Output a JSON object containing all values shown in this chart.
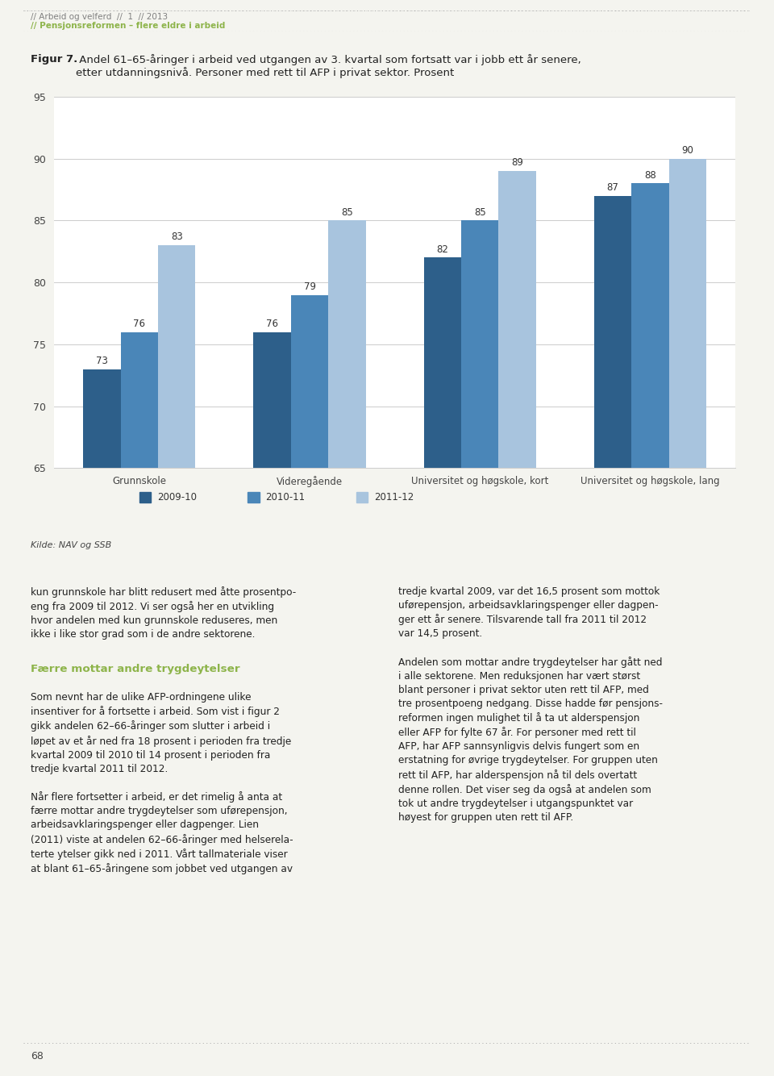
{
  "title_bold": "Figur 7.",
  "title_rest": " Andel 61–65-åringer i arbeid ved utgangen av 3. kvartal som fortsatt var i jobb ett år senere,\netter utdanningsnivå. Personer med rett til AFP i privat sektor. Prosent",
  "categories": [
    "Grunnskole",
    "Videregående",
    "Universitet og høgskole, kort",
    "Universitet og høgskole, lang"
  ],
  "series": {
    "2009-10": [
      73,
      76,
      82,
      87
    ],
    "2010-11": [
      76,
      79,
      85,
      88
    ],
    "2011-12": [
      83,
      85,
      89,
      90
    ]
  },
  "series_order": [
    "2009-10",
    "2010-11",
    "2011-12"
  ],
  "colors": {
    "2009-10": "#2d5f8a",
    "2010-11": "#4a86b8",
    "2011-12": "#a8c4de"
  },
  "ylim": [
    65,
    95
  ],
  "yticks": [
    65,
    70,
    75,
    80,
    85,
    90,
    95
  ],
  "source": "Kilde: NAV og SSB",
  "bar_width": 0.22,
  "header_line1": "// Arbeid og velferd  //  1  // 2013",
  "header_line2": "// Pensjonsreformen – flere eldre i arbeid",
  "footer_text": "68",
  "pre_heading_text": "kun grunnskole har blitt redusert med åtte prosentpo-\neng fra 2009 til 2012. Vi ser også her en utvikling\nhvor andelen med kun grunnskole reduseres, men\nikke i like stor grad som i de andre sektorene.",
  "subheading": "Færre mottar andre trygdeytelser",
  "post_heading_text": "Som nevnt har de ulike AFP-ordningene ulike\ninsentiver for å fortsette i arbeid. Som vist i figur 2\ngikk andelen 62–66-åringer som slutter i arbeid i\nløpet av et år ned fra 18 prosent i perioden fra tredje\nkvartal 2009 til 2010 til 14 prosent i perioden fra\ntredje kvartal 2011 til 2012.\n\nNår flere fortsetter i arbeid, er det rimelig å anta at\nfærre mottar andre trygdeytelser som uførepensjon,\narbeidsavklaringspenger eller dagpenger. Lien\n(2011) viste at andelen 62–66-åringer med helserela-\nterte ytelser gikk ned i 2011. Vårt tallmateriale viser\nat blant 61–65-åringene som jobbet ved utgangen av",
  "body_text_right": "tredje kvartal 2009, var det 16,5 prosent som mottok\nuførepensjon, arbeidsavklaringspenger eller dagpen-\nger ett år senere. Tilsvarende tall fra 2011 til 2012\nvar 14,5 prosent.\n\nAndelen som mottar andre trygdeytelser har gått ned\ni alle sektorene. Men reduksjonen har vært størst\nblant personer i privat sektor uten rett til AFP, med\ntre prosentpoeng nedgang. Disse hadde før pensjons-\nreformen ingen mulighet til å ta ut alderspensjon\neller AFP for fylte 67 år. For personer med rett til\nAFP, har AFP sannsynligvis delvis fungert som en\nerstatning for øvrige trygdeytelser. For gruppen uten\nrett til AFP, har alderspensjon nå til dels overtatt\ndenne rollen. Det viser seg da også at andelen som\ntok ut andre trygdeytelser i utgangspunktet var\nhøyest for gruppen uten rett til AFP.",
  "background_color": "#f4f4ef",
  "chart_bg": "#ffffff",
  "text_color": "#222222",
  "subheading_color": "#8db44a",
  "header_color_gray": "#808080",
  "header_color_green": "#8db44a",
  "dotted_color": "#b0b0b0"
}
